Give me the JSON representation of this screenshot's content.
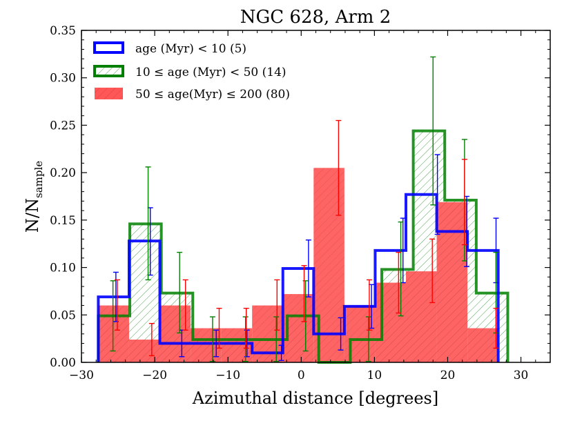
{
  "chart_data": {
    "type": "histogram",
    "title": "NGC 628, Arm 2",
    "xlabel": "Azimuthal distance [degrees]",
    "ylabel": {
      "main": "N/N",
      "subscript": "sample"
    },
    "xlim": [
      -30,
      34
    ],
    "ylim": [
      0,
      0.35
    ],
    "xticks": [
      -30,
      -20,
      -10,
      0,
      10,
      20,
      30
    ],
    "xtick_labels": [
      "−30",
      "−20",
      "−10",
      "0",
      "10",
      "20",
      "30"
    ],
    "yticks": [
      0.0,
      0.05,
      0.1,
      0.15,
      0.2,
      0.25,
      0.3,
      0.35
    ],
    "ytick_labels": [
      "0.00",
      "0.05",
      "0.10",
      "0.15",
      "0.20",
      "0.25",
      "0.30",
      "0.35"
    ],
    "bin_edges": [
      -27.7,
      -23.5,
      -19.3,
      -15.1,
      -10.9,
      -6.7,
      -2.5,
      1.7,
      5.9,
      10.1,
      14.3,
      18.5,
      22.7,
      26.9
    ],
    "bin_edges_mid_series": [
      -27.7,
      -23.4,
      -19.1,
      -14.8,
      -10.5,
      -6.2,
      -1.9,
      2.4,
      6.7,
      11.0,
      15.3,
      19.6,
      23.9,
      28.2
    ],
    "legend_position": "top-left",
    "series": [
      {
        "name": "young",
        "label": "age (Myr) < 10 (5)",
        "style": "step",
        "color": "#0000ff",
        "values": [
          0.069,
          0.128,
          0.02,
          0.02,
          0.02,
          0.01,
          0.099,
          0.03,
          0.059,
          0.118,
          0.177,
          0.138,
          0.118
        ],
        "err_x": [
          -25.3,
          -20.6,
          -16.3,
          -11.6,
          -7.4,
          -2.7,
          1.0,
          5.4,
          9.6,
          13.9,
          18.6,
          22.6,
          26.6
        ],
        "err_center": [
          0.069,
          0.128,
          0.02,
          0.02,
          0.02,
          0.01,
          0.099,
          0.03,
          0.059,
          0.118,
          0.177,
          0.138,
          0.118
        ],
        "err_low": [
          0.043,
          0.092,
          0.006,
          0.006,
          0.006,
          0.002,
          0.069,
          0.013,
          0.036,
          0.084,
          0.135,
          0.101,
          0.084
        ],
        "err_high": [
          0.095,
          0.163,
          0.034,
          0.034,
          0.034,
          0.018,
          0.129,
          0.047,
          0.082,
          0.152,
          0.219,
          0.175,
          0.152
        ]
      },
      {
        "name": "intermediate",
        "label": "10 ≤ age (Myr) < 50 (14)",
        "style": "step-hatched",
        "color": "#008000",
        "values": [
          0.049,
          0.146,
          0.073,
          0.024,
          0.024,
          0.024,
          0.049,
          0.0,
          0.024,
          0.098,
          0.244,
          0.171,
          0.073
        ],
        "err_x": [
          -25.7,
          -20.9,
          -16.6,
          -12.1,
          -7.6,
          -3.4,
          0.6,
          5.4,
          9.2,
          13.6,
          18.0,
          22.3,
          26.6
        ],
        "err_center": [
          0.049,
          0.146,
          0.073,
          0.024,
          0.024,
          0.024,
          0.049,
          0.0,
          0.024,
          0.098,
          0.244,
          0.171,
          0.073
        ],
        "err_low": [
          0.012,
          0.087,
          0.031,
          0.001,
          0.001,
          0.001,
          0.012,
          0.0,
          0.001,
          0.049,
          0.166,
          0.107,
          0.031
        ],
        "err_high": [
          0.086,
          0.206,
          0.116,
          0.048,
          0.048,
          0.048,
          0.086,
          0.0,
          0.048,
          0.148,
          0.322,
          0.235,
          0.116
        ]
      },
      {
        "name": "old",
        "label": "50 ≤ age(Myr) ≤ 200 (80)",
        "style": "filled",
        "color": "#ff0000",
        "values": [
          0.06,
          0.024,
          0.06,
          0.036,
          0.036,
          0.06,
          0.072,
          0.205,
          0.06,
          0.084,
          0.096,
          0.169,
          0.036
        ],
        "err_x": [
          -25.1,
          -20.4,
          -15.8,
          -11.2,
          -7.5,
          -3.3,
          0.4,
          5.1,
          9.3,
          13.3,
          17.9,
          22.3,
          26.6
        ],
        "err_center": [
          0.06,
          0.024,
          0.06,
          0.036,
          0.036,
          0.06,
          0.072,
          0.205,
          0.06,
          0.084,
          0.096,
          0.169,
          0.036
        ],
        "err_low": [
          0.034,
          0.007,
          0.034,
          0.015,
          0.015,
          0.034,
          0.043,
          0.155,
          0.034,
          0.052,
          0.063,
          0.124,
          0.015
        ],
        "err_high": [
          0.087,
          0.041,
          0.087,
          0.057,
          0.057,
          0.087,
          0.102,
          0.255,
          0.087,
          0.116,
          0.13,
          0.214,
          0.057
        ]
      }
    ]
  }
}
